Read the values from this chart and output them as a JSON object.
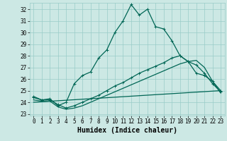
{
  "xlabel": "Humidex (Indice chaleur)",
  "bg_color": "#cce8e4",
  "grid_color": "#99ccc8",
  "line_color": "#006655",
  "xlim": [
    -0.5,
    23.5
  ],
  "ylim": [
    22.85,
    32.55
  ],
  "x_ticks": [
    0,
    1,
    2,
    3,
    4,
    5,
    6,
    7,
    8,
    9,
    10,
    11,
    12,
    13,
    14,
    15,
    16,
    17,
    18,
    19,
    20,
    21,
    22,
    23
  ],
  "y_ticks": [
    23,
    24,
    25,
    26,
    27,
    28,
    29,
    30,
    31,
    32
  ],
  "line1_x": [
    0,
    1,
    2,
    3,
    4,
    5,
    6,
    7,
    8,
    9,
    10,
    11,
    12,
    13,
    14,
    15,
    16,
    17,
    18,
    19,
    20,
    21,
    22,
    23
  ],
  "line1_y": [
    24.5,
    24.2,
    24.3,
    23.7,
    24.0,
    25.6,
    26.3,
    26.6,
    27.8,
    28.5,
    30.0,
    31.0,
    32.4,
    31.5,
    32.0,
    30.5,
    30.3,
    29.3,
    28.0,
    27.5,
    26.5,
    26.3,
    25.8,
    25.0
  ],
  "line2_x": [
    0,
    1,
    2,
    3,
    4,
    5,
    6,
    7,
    8,
    9,
    10,
    11,
    12,
    13,
    14,
    15,
    16,
    17,
    18,
    19,
    20,
    21,
    22,
    23
  ],
  "line2_y": [
    24.4,
    24.2,
    24.2,
    23.8,
    23.5,
    23.7,
    24.0,
    24.3,
    24.6,
    25.0,
    25.4,
    25.7,
    26.1,
    26.5,
    26.8,
    27.1,
    27.4,
    27.8,
    28.0,
    27.5,
    27.2,
    26.5,
    25.6,
    24.9
  ],
  "line3_x": [
    0,
    1,
    2,
    3,
    4,
    5,
    6,
    7,
    8,
    9,
    10,
    11,
    12,
    13,
    14,
    15,
    16,
    17,
    18,
    19,
    20,
    21,
    22,
    23
  ],
  "line3_y": [
    24.2,
    24.1,
    24.1,
    23.6,
    23.4,
    23.5,
    23.7,
    24.0,
    24.3,
    24.6,
    24.9,
    25.2,
    25.5,
    25.8,
    26.1,
    26.4,
    26.7,
    27.0,
    27.3,
    27.5,
    27.6,
    27.0,
    25.8,
    24.8
  ],
  "line4_x": [
    0,
    23
  ],
  "line4_y": [
    24.0,
    25.0
  ],
  "lw": 0.9,
  "ms": 3.5,
  "tick_fontsize": 5.5,
  "xlabel_fontsize": 7.0
}
